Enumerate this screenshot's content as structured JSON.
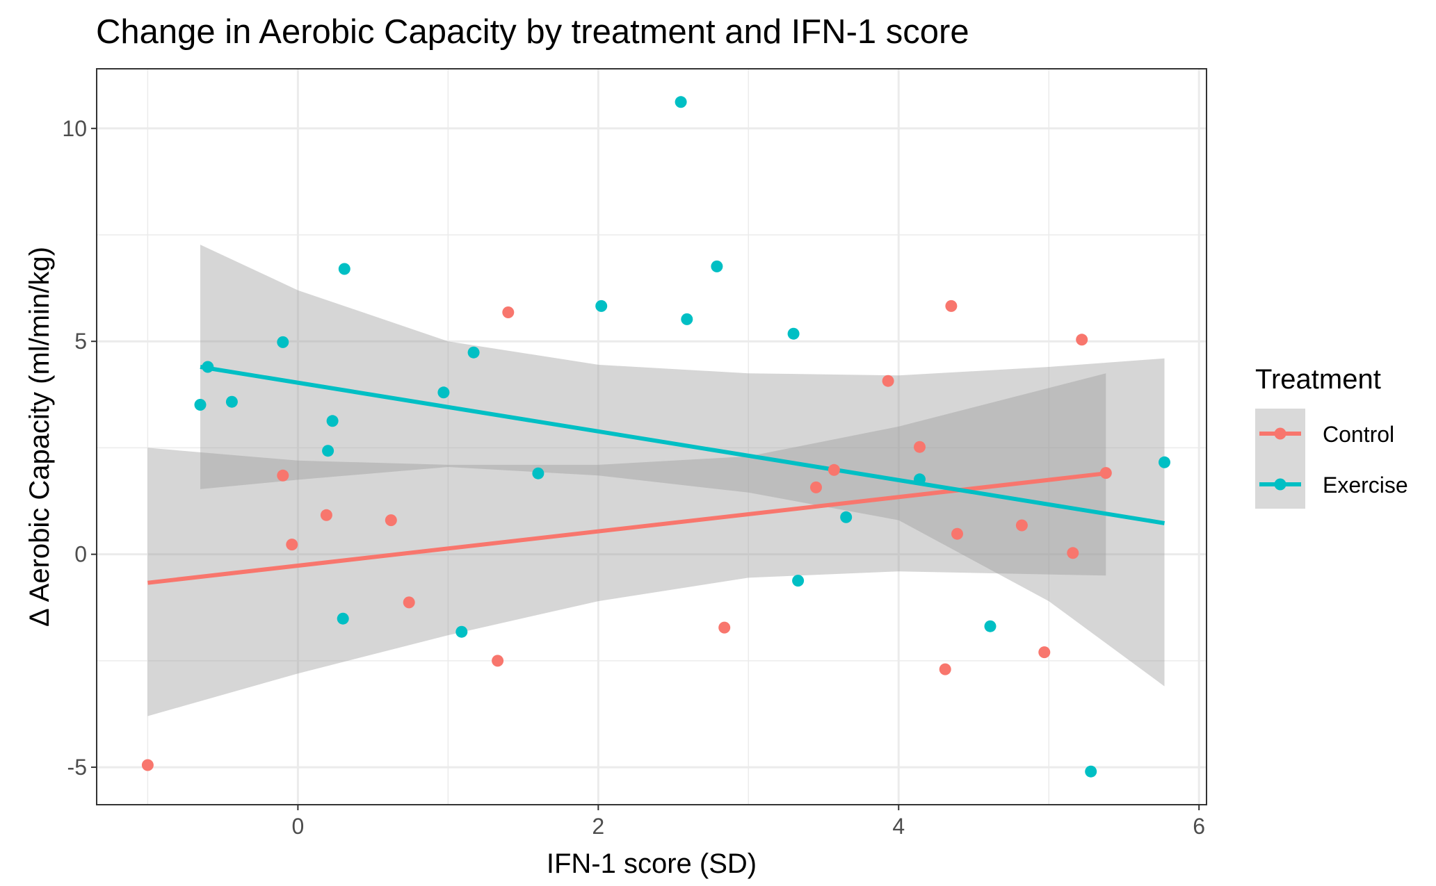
{
  "chart_data": {
    "type": "scatter",
    "title": "Change in Aerobic Capacity by treatment and IFN-1 score",
    "xlabel": "IFN-1 score (SD)",
    "ylabel": "Δ Aerobic Capacity (ml/min/kg)",
    "xlim": [
      -1.34,
      6.05
    ],
    "ylim": [
      -5.88,
      11.4
    ],
    "x_ticks": [
      0,
      2,
      4,
      6
    ],
    "x_tick_labels": [
      "0",
      "2",
      "4",
      "6"
    ],
    "y_ticks": [
      -5,
      0,
      5,
      10
    ],
    "y_tick_labels": [
      "-5",
      "0",
      "5",
      "10"
    ],
    "grid": true,
    "legend": {
      "title": "Treatment",
      "position": "right",
      "entries": [
        "Control",
        "Exercise"
      ]
    },
    "colors": {
      "Control": "#F8766D",
      "Exercise": "#00BFC4",
      "confidence_band": "#999999",
      "grid": "#EBEBEB",
      "panel_border": "#333333"
    },
    "series": [
      {
        "name": "Control",
        "points": [
          {
            "x": -1.0,
            "y": -4.95
          },
          {
            "x": -0.1,
            "y": 1.85
          },
          {
            "x": -0.04,
            "y": 0.23
          },
          {
            "x": 0.19,
            "y": 0.92
          },
          {
            "x": 0.62,
            "y": 0.8
          },
          {
            "x": 0.74,
            "y": -1.13
          },
          {
            "x": 1.33,
            "y": -2.5
          },
          {
            "x": 1.4,
            "y": 5.68
          },
          {
            "x": 2.84,
            "y": -1.72
          },
          {
            "x": 3.45,
            "y": 1.57
          },
          {
            "x": 3.57,
            "y": 1.98
          },
          {
            "x": 3.93,
            "y": 4.07
          },
          {
            "x": 4.14,
            "y": 2.52
          },
          {
            "x": 4.31,
            "y": -2.7
          },
          {
            "x": 4.35,
            "y": 5.83
          },
          {
            "x": 4.39,
            "y": 0.48
          },
          {
            "x": 4.82,
            "y": 0.68
          },
          {
            "x": 4.97,
            "y": -2.3
          },
          {
            "x": 5.16,
            "y": 0.03
          },
          {
            "x": 5.22,
            "y": 5.04
          },
          {
            "x": 5.38,
            "y": 1.91
          }
        ],
        "fit": {
          "x": [
            -1.0,
            5.38
          ],
          "y": [
            -0.67,
            1.9
          ]
        },
        "ci": {
          "x": [
            -1.0,
            0.0,
            1.0,
            2.0,
            3.0,
            4.0,
            5.38
          ],
          "lower": [
            -3.8,
            -2.8,
            -1.9,
            -1.1,
            -0.55,
            -0.4,
            -0.5
          ],
          "upper": [
            2.5,
            2.2,
            2.1,
            2.1,
            2.3,
            3.0,
            4.25
          ]
        }
      },
      {
        "name": "Exercise",
        "points": [
          {
            "x": -0.65,
            "y": 3.51
          },
          {
            "x": -0.6,
            "y": 4.4
          },
          {
            "x": -0.44,
            "y": 3.58
          },
          {
            "x": -0.1,
            "y": 4.98
          },
          {
            "x": 0.2,
            "y": 2.43
          },
          {
            "x": 0.23,
            "y": 3.13
          },
          {
            "x": 0.3,
            "y": -1.51
          },
          {
            "x": 0.31,
            "y": 6.7
          },
          {
            "x": 0.97,
            "y": 3.8
          },
          {
            "x": 1.09,
            "y": -1.82
          },
          {
            "x": 1.17,
            "y": 4.74
          },
          {
            "x": 1.6,
            "y": 1.9
          },
          {
            "x": 2.02,
            "y": 5.83
          },
          {
            "x": 2.55,
            "y": 10.62
          },
          {
            "x": 2.59,
            "y": 5.52
          },
          {
            "x": 2.79,
            "y": 6.76
          },
          {
            "x": 3.3,
            "y": 5.18
          },
          {
            "x": 3.33,
            "y": -0.62
          },
          {
            "x": 3.65,
            "y": 0.87
          },
          {
            "x": 4.14,
            "y": 1.76
          },
          {
            "x": 4.61,
            "y": -1.69
          },
          {
            "x": 5.28,
            "y": -5.1
          },
          {
            "x": 5.77,
            "y": 2.16
          }
        ],
        "fit": {
          "x": [
            -0.65,
            5.77
          ],
          "y": [
            4.4,
            0.73
          ]
        },
        "ci": {
          "x": [
            -0.65,
            0.0,
            1.0,
            2.0,
            3.0,
            4.0,
            5.0,
            5.77
          ],
          "lower": [
            1.53,
            1.75,
            2.05,
            1.85,
            1.45,
            0.8,
            -1.1,
            -3.1
          ],
          "upper": [
            7.27,
            6.2,
            5.0,
            4.45,
            4.25,
            4.2,
            4.4,
            4.6
          ]
        }
      }
    ]
  }
}
